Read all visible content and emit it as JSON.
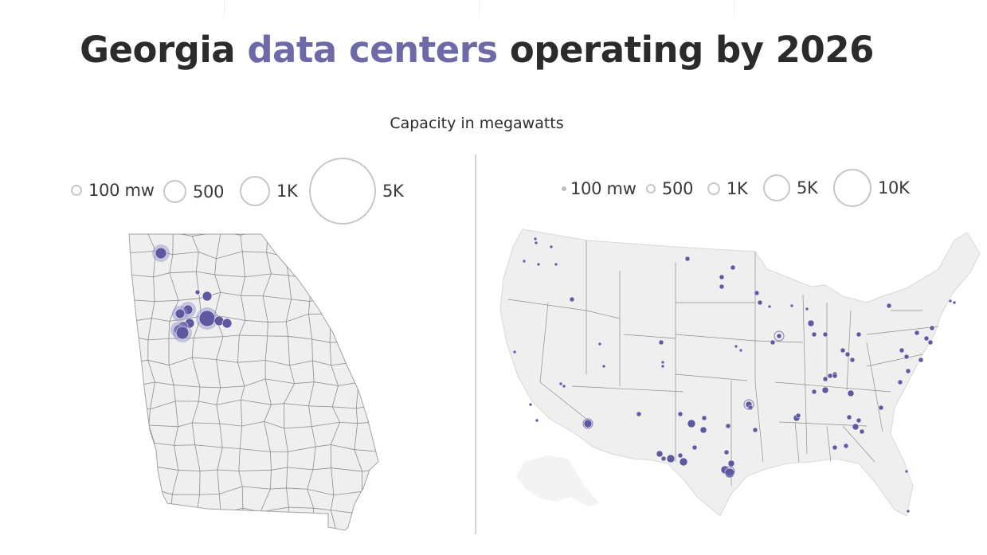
{
  "title": {
    "part1": "Georgia",
    "highlight": "data centers",
    "part2": "operating by 2026"
  },
  "subtitle": "Capacity in megawatts",
  "colors": {
    "accent": "#6e6aa8",
    "dot": "#5d58a0",
    "land": "#efefef",
    "border": "#8d8d8d",
    "legend_circle": "#c7c7c7",
    "divider": "#d4d4d4"
  },
  "georgia_map": {
    "legend": [
      {
        "label": "100 mw",
        "mw": 100
      },
      {
        "label": "500",
        "mw": 500
      },
      {
        "label": "1K",
        "mw": 1000
      },
      {
        "label": "5K",
        "mw": 5000
      }
    ]
  },
  "us_map": {
    "legend": [
      {
        "label": "100 mw",
        "mw": 100
      },
      {
        "label": "500",
        "mw": 500
      },
      {
        "label": "1K",
        "mw": 1000
      },
      {
        "label": "5K",
        "mw": 5000
      },
      {
        "label": "10K",
        "mw": 10000
      }
    ]
  }
}
